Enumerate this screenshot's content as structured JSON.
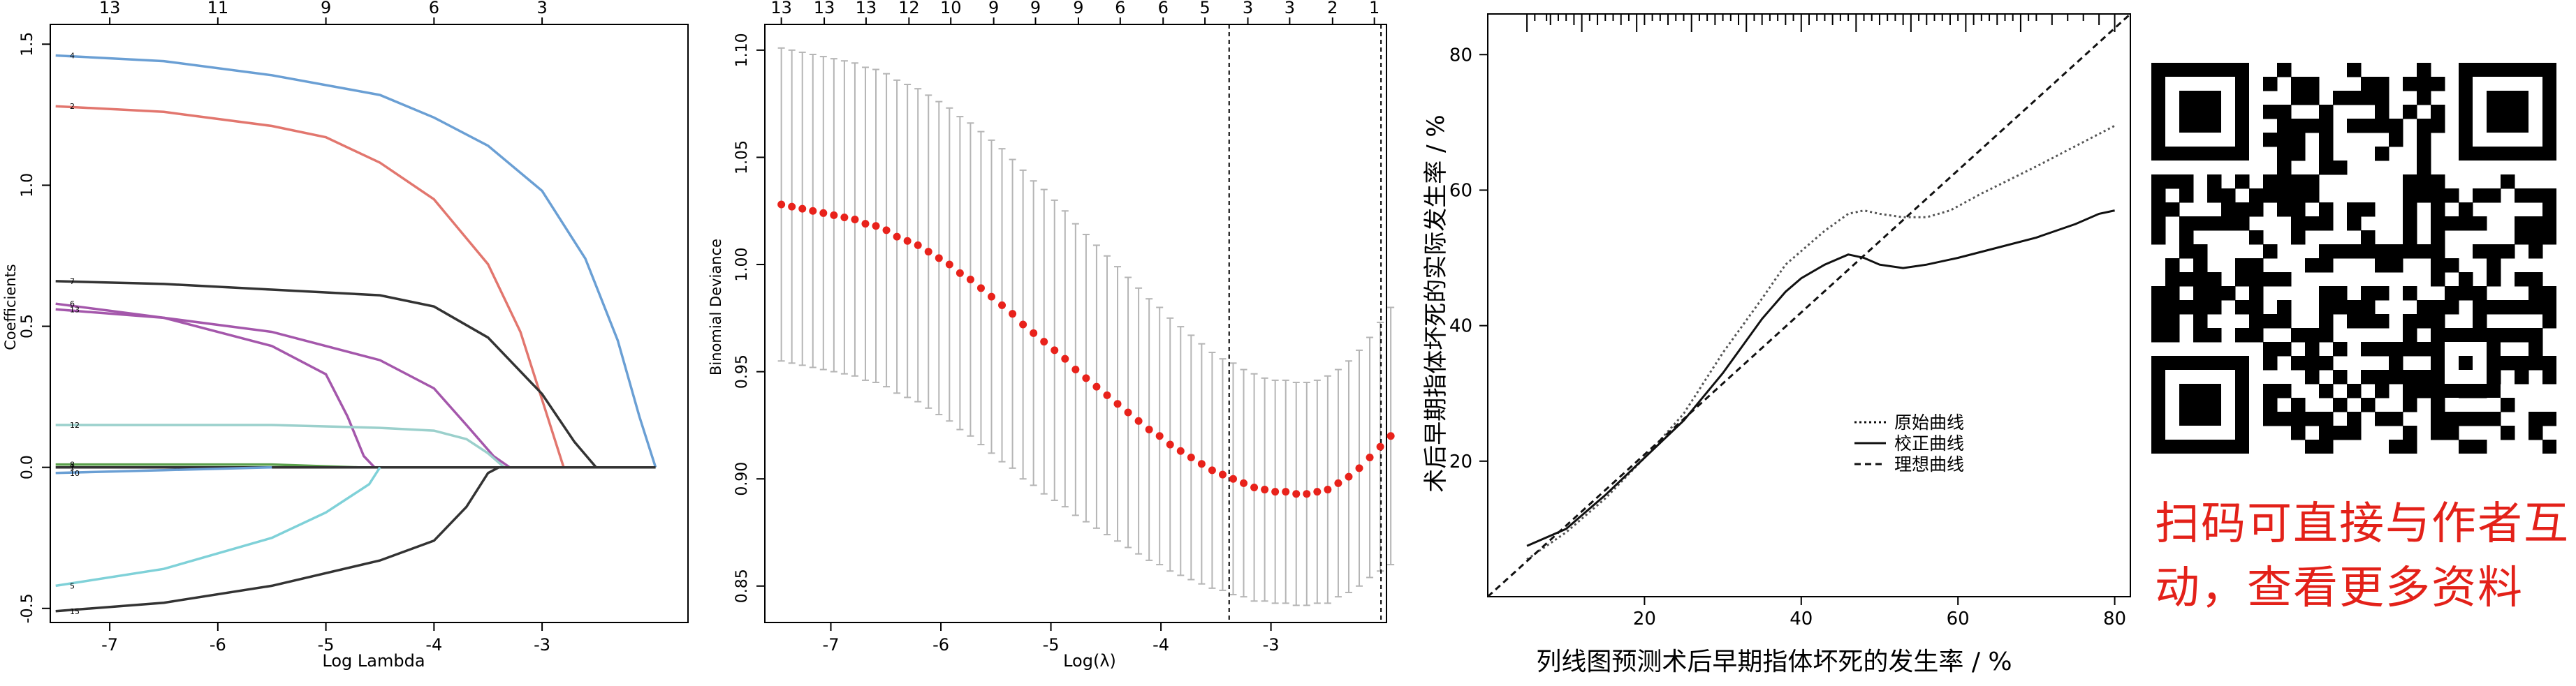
{
  "chart_data": [
    {
      "type": "line",
      "xlabel": "Log Lambda",
      "ylabel": "Coefficients",
      "xlim": [
        -7.55,
        -1.65
      ],
      "ylim": [
        -0.55,
        1.57
      ],
      "x_ticks": [
        -7,
        -6,
        -5,
        -4,
        -3
      ],
      "y_ticks": [
        -0.5,
        0.0,
        0.5,
        1.0,
        1.5
      ],
      "top_ticks": [
        {
          "x": -7.0,
          "label": "13"
        },
        {
          "x": -6.0,
          "label": "11"
        },
        {
          "x": -5.0,
          "label": "9"
        },
        {
          "x": -4.0,
          "label": "6"
        },
        {
          "x": -3.0,
          "label": "3"
        }
      ],
      "grid": false,
      "series": [
        {
          "name": "4",
          "color": "#6a9fd4",
          "points": [
            [
              -7.5,
              1.46
            ],
            [
              -6.5,
              1.44
            ],
            [
              -5.5,
              1.39
            ],
            [
              -4.5,
              1.32
            ],
            [
              -4.0,
              1.24
            ],
            [
              -3.5,
              1.14
            ],
            [
              -3.0,
              0.98
            ],
            [
              -2.6,
              0.74
            ],
            [
              -2.3,
              0.45
            ],
            [
              -2.1,
              0.18
            ],
            [
              -1.95,
              0.0
            ]
          ]
        },
        {
          "name": "2",
          "color": "#e2766e",
          "points": [
            [
              -7.5,
              1.28
            ],
            [
              -6.5,
              1.26
            ],
            [
              -5.5,
              1.21
            ],
            [
              -5.0,
              1.17
            ],
            [
              -4.5,
              1.08
            ],
            [
              -4.0,
              0.95
            ],
            [
              -3.5,
              0.72
            ],
            [
              -3.2,
              0.48
            ],
            [
              -2.95,
              0.18
            ],
            [
              -2.8,
              0.0
            ]
          ]
        },
        {
          "name": "7",
          "color": "#333333",
          "points": [
            [
              -7.5,
              0.66
            ],
            [
              -6.5,
              0.65
            ],
            [
              -5.5,
              0.63
            ],
            [
              -4.5,
              0.61
            ],
            [
              -4.0,
              0.57
            ],
            [
              -3.5,
              0.46
            ],
            [
              -3.0,
              0.26
            ],
            [
              -2.7,
              0.09
            ],
            [
              -2.5,
              0.0
            ]
          ]
        },
        {
          "name": "6",
          "color": "#a457ab",
          "points": [
            [
              -7.5,
              0.58
            ],
            [
              -6.5,
              0.53
            ],
            [
              -5.5,
              0.43
            ],
            [
              -5.0,
              0.33
            ],
            [
              -4.8,
              0.18
            ],
            [
              -4.65,
              0.04
            ],
            [
              -4.55,
              0.0
            ]
          ]
        },
        {
          "name": "13",
          "color": "#a457ab",
          "points": [
            [
              -7.5,
              0.56
            ],
            [
              -6.5,
              0.53
            ],
            [
              -5.5,
              0.48
            ],
            [
              -4.5,
              0.38
            ],
            [
              -4.0,
              0.28
            ],
            [
              -3.7,
              0.15
            ],
            [
              -3.45,
              0.04
            ],
            [
              -3.3,
              0.0
            ]
          ]
        },
        {
          "name": "12",
          "color": "#9bd0cc",
          "points": [
            [
              -7.5,
              0.15
            ],
            [
              -6.5,
              0.15
            ],
            [
              -5.5,
              0.15
            ],
            [
              -4.5,
              0.14
            ],
            [
              -4.0,
              0.13
            ],
            [
              -3.7,
              0.1
            ],
            [
              -3.5,
              0.05
            ],
            [
              -3.35,
              0.0
            ]
          ]
        },
        {
          "name": "8",
          "color": "#5aa04b",
          "points": [
            [
              -7.5,
              0.01
            ],
            [
              -6.5,
              0.01
            ],
            [
              -5.5,
              0.01
            ],
            [
              -4.7,
              0.0
            ]
          ]
        },
        {
          "name": "1",
          "color": "#333333",
          "points": [
            [
              -7.5,
              0.0
            ],
            [
              -1.95,
              0.0
            ]
          ]
        },
        {
          "name": "10",
          "color": "#6a9fd4",
          "points": [
            [
              -7.5,
              -0.02
            ],
            [
              -6.5,
              -0.01
            ],
            [
              -5.5,
              0.0
            ]
          ]
        },
        {
          "name": "5",
          "color": "#7fd1d8",
          "points": [
            [
              -7.5,
              -0.42
            ],
            [
              -6.5,
              -0.36
            ],
            [
              -5.5,
              -0.25
            ],
            [
              -5.0,
              -0.16
            ],
            [
              -4.6,
              -0.06
            ],
            [
              -4.5,
              0.0
            ]
          ]
        },
        {
          "name": "15",
          "color": "#333333",
          "points": [
            [
              -7.5,
              -0.51
            ],
            [
              -6.5,
              -0.48
            ],
            [
              -5.5,
              -0.42
            ],
            [
              -4.5,
              -0.33
            ],
            [
              -4.0,
              -0.26
            ],
            [
              -3.7,
              -0.14
            ],
            [
              -3.5,
              -0.02
            ],
            [
              -3.4,
              0.0
            ]
          ]
        }
      ]
    },
    {
      "type": "scatter",
      "xlabel": "Log(λ)",
      "ylabel": "Binomial Deviance",
      "xlim": [
        -7.6,
        -1.95
      ],
      "ylim": [
        0.833,
        1.112
      ],
      "x_ticks": [
        -7,
        -6,
        -5,
        -4,
        -3
      ],
      "y_ticks": [
        0.85,
        0.9,
        0.95,
        1.0,
        1.05,
        1.1
      ],
      "top_ticks": [
        {
          "x": -7.45,
          "label": "13"
        },
        {
          "x": -7.06,
          "label": "13"
        },
        {
          "x": -6.68,
          "label": "13"
        },
        {
          "x": -6.29,
          "label": "12"
        },
        {
          "x": -5.91,
          "label": "10"
        },
        {
          "x": -5.52,
          "label": "9"
        },
        {
          "x": -5.14,
          "label": "9"
        },
        {
          "x": -4.75,
          "label": "9"
        },
        {
          "x": -4.37,
          "label": "6"
        },
        {
          "x": -3.98,
          "label": "6"
        },
        {
          "x": -3.6,
          "label": "5"
        },
        {
          "x": -3.21,
          "label": "3"
        },
        {
          "x": -2.83,
          "label": "3"
        },
        {
          "x": -2.44,
          "label": "2"
        },
        {
          "x": -2.06,
          "label": "1"
        }
      ],
      "vlines": [
        -3.38,
        -2.0
      ],
      "points_x_start": -7.45,
      "points_x_step": 0.0955,
      "values": [
        1.028,
        1.027,
        1.026,
        1.025,
        1.024,
        1.023,
        1.022,
        1.021,
        1.019,
        1.018,
        1.016,
        1.013,
        1.011,
        1.009,
        1.006,
        1.003,
        1.0,
        0.996,
        0.993,
        0.989,
        0.985,
        0.981,
        0.977,
        0.972,
        0.968,
        0.964,
        0.96,
        0.956,
        0.951,
        0.947,
        0.943,
        0.939,
        0.935,
        0.931,
        0.927,
        0.923,
        0.92,
        0.916,
        0.913,
        0.91,
        0.907,
        0.904,
        0.902,
        0.9,
        0.898,
        0.896,
        0.895,
        0.894,
        0.894,
        0.893,
        0.893,
        0.894,
        0.895,
        0.898,
        0.901,
        0.905,
        0.91,
        0.915,
        0.92,
        0.926,
        0.932,
        0.938,
        0.945
      ],
      "errors": [
        0.073,
        0.073,
        0.073,
        0.073,
        0.073,
        0.073,
        0.073,
        0.073,
        0.073,
        0.073,
        0.073,
        0.073,
        0.073,
        0.073,
        0.073,
        0.073,
        0.073,
        0.073,
        0.073,
        0.073,
        0.073,
        0.073,
        0.072,
        0.072,
        0.071,
        0.071,
        0.07,
        0.069,
        0.068,
        0.067,
        0.066,
        0.065,
        0.064,
        0.063,
        0.062,
        0.061,
        0.06,
        0.059,
        0.058,
        0.057,
        0.056,
        0.055,
        0.054,
        0.054,
        0.053,
        0.053,
        0.052,
        0.052,
        0.052,
        0.052,
        0.052,
        0.052,
        0.053,
        0.053,
        0.054,
        0.055,
        0.056,
        0.058,
        0.06,
        0.062,
        0.064,
        0.066,
        0.069
      ]
    },
    {
      "type": "line",
      "xlabel": "列线图预测术后早期指体坏死的发生率 / %",
      "ylabel": "术后早期指体坏死的实际发生率 / %",
      "xlim": [
        0,
        82
      ],
      "ylim": [
        0,
        86
      ],
      "x_ticks": [
        20,
        40,
        60,
        80
      ],
      "y_ticks": [
        20,
        40,
        60,
        80
      ],
      "legend_position": "center-right",
      "legend": [
        "原始曲线",
        "校正曲线",
        "理想曲线"
      ],
      "series": [
        {
          "name": "原始曲线",
          "style": "dotted",
          "color": "#555555",
          "points": [
            [
              5,
              5.5
            ],
            [
              10,
              9.5
            ],
            [
              15,
              14.5
            ],
            [
              20,
              20.5
            ],
            [
              25,
              27
            ],
            [
              30,
              36
            ],
            [
              35,
              44
            ],
            [
              38,
              49
            ],
            [
              40,
              51
            ],
            [
              43,
              54
            ],
            [
              46,
              56.5
            ],
            [
              48,
              57
            ],
            [
              50,
              56.5
            ],
            [
              53,
              56
            ],
            [
              56,
              56
            ],
            [
              59,
              57
            ],
            [
              63,
              59.5
            ],
            [
              70,
              63.5
            ],
            [
              75,
              66.5
            ],
            [
              80,
              69.5
            ]
          ]
        },
        {
          "name": "校正曲线",
          "style": "solid",
          "color": "#111111",
          "points": [
            [
              5,
              7.5
            ],
            [
              10,
              10
            ],
            [
              15,
              15
            ],
            [
              20,
              20.5
            ],
            [
              25,
              26
            ],
            [
              30,
              33
            ],
            [
              35,
              41
            ],
            [
              38,
              45
            ],
            [
              40,
              47
            ],
            [
              43,
              49
            ],
            [
              46,
              50.5
            ],
            [
              48,
              50
            ],
            [
              50,
              49
            ],
            [
              53,
              48.5
            ],
            [
              56,
              49
            ],
            [
              60,
              50
            ],
            [
              65,
              51.5
            ],
            [
              70,
              53
            ],
            [
              75,
              55
            ],
            [
              78,
              56.5
            ],
            [
              80,
              57
            ]
          ]
        },
        {
          "name": "理想曲线",
          "style": "dashed",
          "color": "#111111",
          "points": [
            [
              0,
              0
            ],
            [
              82,
              86
            ]
          ]
        }
      ],
      "rug_x": [
        5,
        6,
        7.5,
        8,
        9,
        10,
        11,
        12,
        13,
        14,
        15,
        16,
        17,
        18,
        19,
        20,
        21,
        22,
        23,
        24,
        25,
        26,
        27,
        28,
        29,
        30,
        31,
        32,
        33,
        34,
        35,
        36,
        37,
        38,
        39,
        40,
        41,
        42,
        43,
        44,
        45,
        46,
        47,
        48,
        49,
        50,
        51,
        52,
        53,
        54,
        55,
        56,
        57,
        58,
        59,
        60,
        61,
        62,
        63,
        64,
        65,
        66,
        67,
        68,
        69,
        70,
        72,
        74,
        76,
        78,
        80
      ]
    }
  ],
  "qr_caption": {
    "line1": "扫码可直接与作者互",
    "line2": "动，查看更多资料"
  }
}
